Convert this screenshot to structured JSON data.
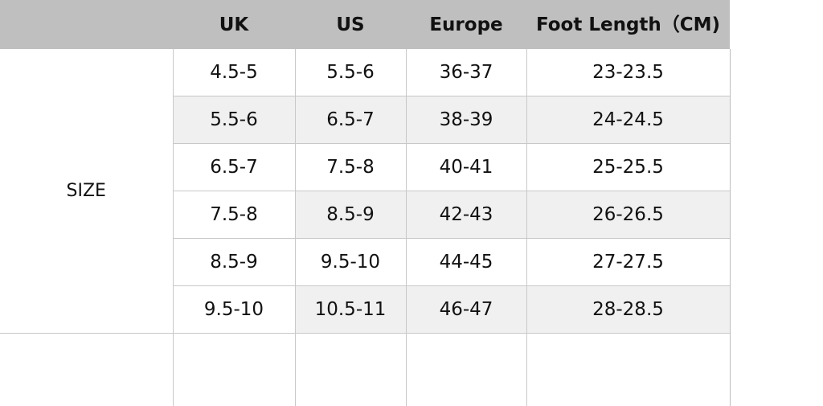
{
  "headers": [
    "UK",
    "US",
    "Europe",
    "Foot Length（CM)"
  ],
  "row_label": "SIZE",
  "rows": [
    [
      "4.5-5",
      "5.5-6",
      "36-37",
      "23-23.5"
    ],
    [
      "5.5-6",
      "6.5-7",
      "38-39",
      "24-24.5"
    ],
    [
      "6.5-7",
      "7.5-8",
      "40-41",
      "25-25.5"
    ],
    [
      "7.5-8",
      "8.5-9",
      "42-43",
      "26-26.5"
    ],
    [
      "8.5-9",
      "9.5-10",
      "44-45",
      "27-27.5"
    ],
    [
      "9.5-10",
      "10.5-11",
      "46-47",
      "28-28.5"
    ]
  ],
  "colors": {
    "header_bg": "#bfbfbf",
    "shaded_row": "#f0f0f0",
    "grid": "#c8c8c8"
  }
}
